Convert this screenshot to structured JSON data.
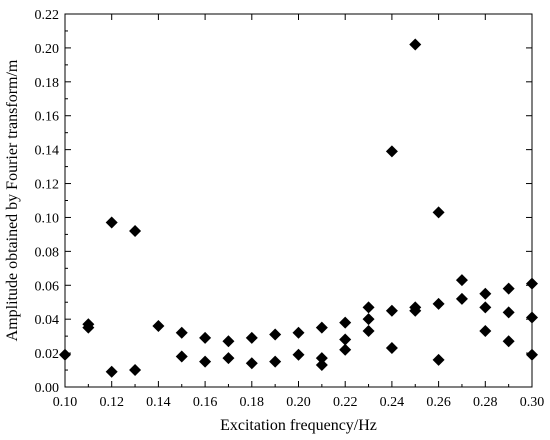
{
  "chart_data": {
    "type": "scatter",
    "title": "",
    "xlabel": "Excitation frequency/Hz",
    "ylabel": "Amplitude obtained by Fourier transform/m",
    "xlim": [
      0.1,
      0.3
    ],
    "ylim": [
      0.0,
      0.22
    ],
    "xticks": [
      "0.10",
      "0.12",
      "0.14",
      "0.16",
      "0.18",
      "0.20",
      "0.22",
      "0.24",
      "0.26",
      "0.28",
      "0.30"
    ],
    "yticks": [
      "0.00",
      "0.02",
      "0.04",
      "0.06",
      "0.08",
      "0.10",
      "0.12",
      "0.14",
      "0.16",
      "0.18",
      "0.20",
      "0.22"
    ],
    "grid": false,
    "legend": "none",
    "marker": "diamond",
    "marker_color": "#000000",
    "series": [
      {
        "points": [
          [
            0.1,
            0.019
          ],
          [
            0.11,
            0.037
          ],
          [
            0.11,
            0.035
          ],
          [
            0.12,
            0.097
          ],
          [
            0.12,
            0.009
          ],
          [
            0.13,
            0.092
          ],
          [
            0.13,
            0.01
          ],
          [
            0.14,
            0.036
          ],
          [
            0.15,
            0.032
          ],
          [
            0.15,
            0.018
          ],
          [
            0.16,
            0.029
          ],
          [
            0.16,
            0.015
          ],
          [
            0.17,
            0.027
          ],
          [
            0.17,
            0.017
          ],
          [
            0.18,
            0.029
          ],
          [
            0.18,
            0.014
          ],
          [
            0.19,
            0.031
          ],
          [
            0.19,
            0.015
          ],
          [
            0.2,
            0.032
          ],
          [
            0.2,
            0.019
          ],
          [
            0.21,
            0.035
          ],
          [
            0.21,
            0.017
          ],
          [
            0.21,
            0.013
          ],
          [
            0.22,
            0.038
          ],
          [
            0.22,
            0.028
          ],
          [
            0.22,
            0.022
          ],
          [
            0.23,
            0.047
          ],
          [
            0.23,
            0.04
          ],
          [
            0.23,
            0.033
          ],
          [
            0.24,
            0.139
          ],
          [
            0.24,
            0.045
          ],
          [
            0.24,
            0.023
          ],
          [
            0.25,
            0.202
          ],
          [
            0.25,
            0.047
          ],
          [
            0.25,
            0.045
          ],
          [
            0.26,
            0.103
          ],
          [
            0.26,
            0.049
          ],
          [
            0.26,
            0.016
          ],
          [
            0.27,
            0.063
          ],
          [
            0.27,
            0.052
          ],
          [
            0.28,
            0.055
          ],
          [
            0.28,
            0.047
          ],
          [
            0.28,
            0.033
          ],
          [
            0.29,
            0.058
          ],
          [
            0.29,
            0.044
          ],
          [
            0.29,
            0.027
          ],
          [
            0.3,
            0.061
          ],
          [
            0.3,
            0.041
          ],
          [
            0.3,
            0.019
          ]
        ]
      }
    ]
  }
}
